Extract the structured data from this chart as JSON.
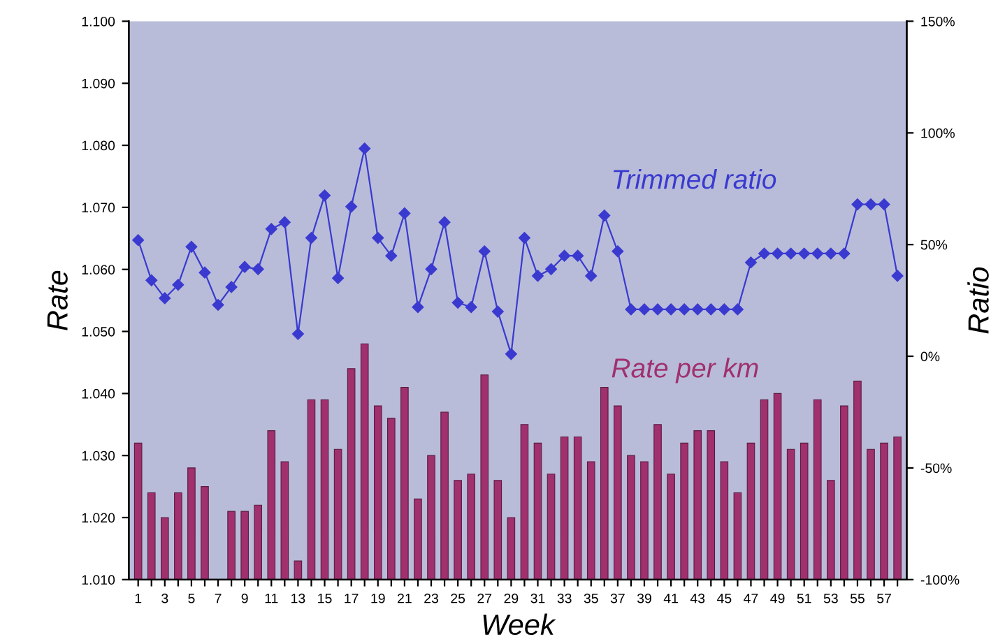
{
  "chart_data": {
    "type": "bar",
    "xlabel": "Week",
    "ylabel": "Rate",
    "y2label": "Ratio",
    "categories": [
      "1",
      null,
      "3",
      null,
      "5",
      null,
      "7",
      null,
      "9",
      null,
      "11",
      null,
      "13",
      null,
      "15",
      null,
      "17",
      null,
      "19",
      null,
      "21",
      null,
      "23",
      null,
      "25",
      null,
      "27",
      null,
      "29",
      null,
      "31",
      null,
      "33",
      null,
      "35",
      null,
      "37",
      null,
      "39",
      null,
      "41",
      null,
      "43",
      null,
      "45",
      null,
      "47",
      null,
      "49",
      null,
      "51",
      null,
      "53",
      null,
      "55",
      null,
      "57",
      null
    ],
    "series": [
      {
        "name": "Rate per km",
        "color": "#a0306e",
        "values": [
          1.032,
          1.024,
          1.02,
          1.024,
          1.028,
          1.025,
          null,
          1.021,
          1.021,
          1.022,
          1.034,
          1.029,
          1.013,
          1.039,
          1.039,
          1.031,
          1.044,
          1.048,
          1.038,
          1.036,
          1.041,
          1.023,
          1.03,
          1.037,
          1.026,
          1.027,
          1.043,
          1.026,
          1.02,
          1.035,
          1.032,
          1.027,
          1.033,
          1.033,
          1.029,
          1.041,
          1.038,
          1.03,
          1.029,
          1.035,
          1.027,
          1.032,
          1.034,
          1.034,
          1.029,
          1.024,
          1.032,
          1.039,
          1.04,
          1.031,
          1.032,
          1.039,
          1.026,
          1.038,
          1.042,
          1.031,
          1.032,
          1.033
        ]
      },
      {
        "name": "Trimmed ratio",
        "type": "line",
        "axis": "y2",
        "color": "#3a3ad0",
        "marker": "diamond",
        "values": [
          52,
          34,
          26,
          32,
          49,
          37.5,
          23,
          31,
          40,
          39,
          57,
          60,
          10,
          53,
          72,
          35,
          67,
          93,
          53,
          45,
          64,
          22,
          39,
          60,
          24,
          22,
          47,
          20,
          1,
          53,
          36,
          39,
          45,
          45,
          36,
          63,
          47,
          21,
          21,
          21,
          21,
          21,
          21,
          21,
          21,
          21,
          42,
          46,
          46,
          46,
          46,
          46,
          46,
          46,
          68,
          68,
          68,
          36
        ]
      }
    ],
    "ylim": [
      1.01,
      1.1
    ],
    "yticks": [
      {
        "value": 1.01,
        "label": "1.010"
      },
      {
        "value": 1.02,
        "label": "1.020"
      },
      {
        "value": 1.03,
        "label": "1.030"
      },
      {
        "value": 1.04,
        "label": "1.040"
      },
      {
        "value": 1.05,
        "label": "1.050"
      },
      {
        "value": 1.06,
        "label": "1.060"
      },
      {
        "value": 1.07,
        "label": "1.070"
      },
      {
        "value": 1.08,
        "label": "1.080"
      },
      {
        "value": 1.09,
        "label": "1.090"
      },
      {
        "value": 1.1,
        "label": "1.100"
      }
    ],
    "y2lim": [
      -100,
      150
    ],
    "y2ticks": [
      {
        "value": -100,
        "label": "-100%"
      },
      {
        "value": -50,
        "label": "-50%"
      },
      {
        "value": 0,
        "label": "0%"
      },
      {
        "value": 50,
        "label": "50%"
      },
      {
        "value": 100,
        "label": "100%"
      },
      {
        "value": 150,
        "label": "150%"
      }
    ],
    "grid": false,
    "legend": false
  }
}
